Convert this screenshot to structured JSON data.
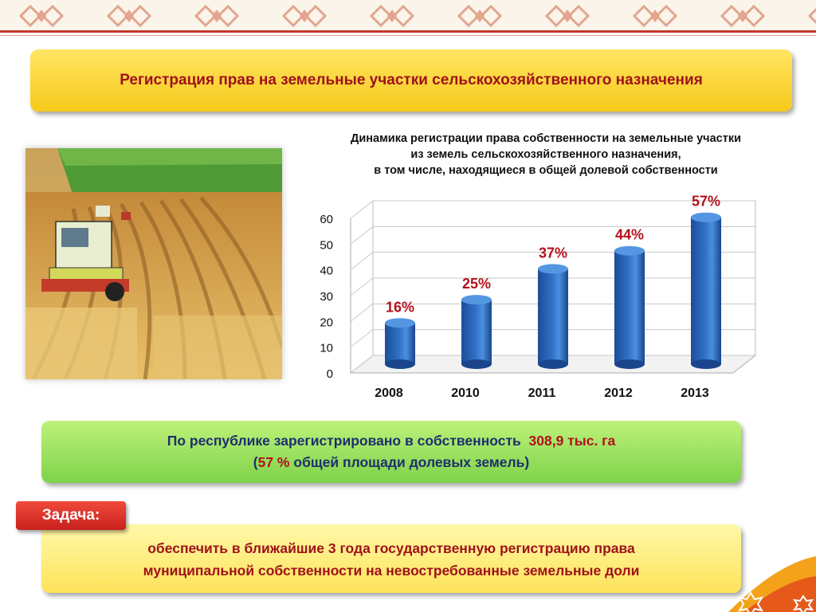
{
  "header": {
    "title": "Регистрация прав на земельные участки сельскохозяйственного назначения"
  },
  "chart": {
    "title_lines": [
      "Динамика регистрации права собственности на земельные участки",
      "из земель сельскохозяйственного назначения,",
      "в том числе, находящиеся в общей долевой собственности"
    ]
  },
  "chart_data": {
    "type": "bar",
    "categories": [
      "2008",
      "2010",
      "2011",
      "2012",
      "2013"
    ],
    "values": [
      16,
      25,
      37,
      44,
      57
    ],
    "data_labels": [
      "16%",
      "25%",
      "37%",
      "44%",
      "57%"
    ],
    "yticks": [
      0,
      10,
      20,
      30,
      40,
      50,
      60
    ],
    "ylim": [
      0,
      60
    ],
    "grid": true,
    "bar_color": "#2f6fc4",
    "label_color": "#b3121c"
  },
  "summary": {
    "part1": "По республике",
    "part2": "зарегистрировано в собственность",
    "value": "308,9 тыс. га",
    "paren_open": "(",
    "percent": "57 %",
    "part3": "общей площади долевых земель",
    "paren_close": ")"
  },
  "task": {
    "label": "Задача:",
    "line1": "обеспечить в ближайшие 3 года государственную регистрацию права",
    "line2": "муниципальной собственности на невостребованные земельные доли"
  },
  "colors": {
    "title_box": "#f6c91a",
    "title_text": "#a0121a",
    "summary_box": "#7ed24a",
    "task_label": "#d8271f",
    "task_box": "#fde35a"
  }
}
